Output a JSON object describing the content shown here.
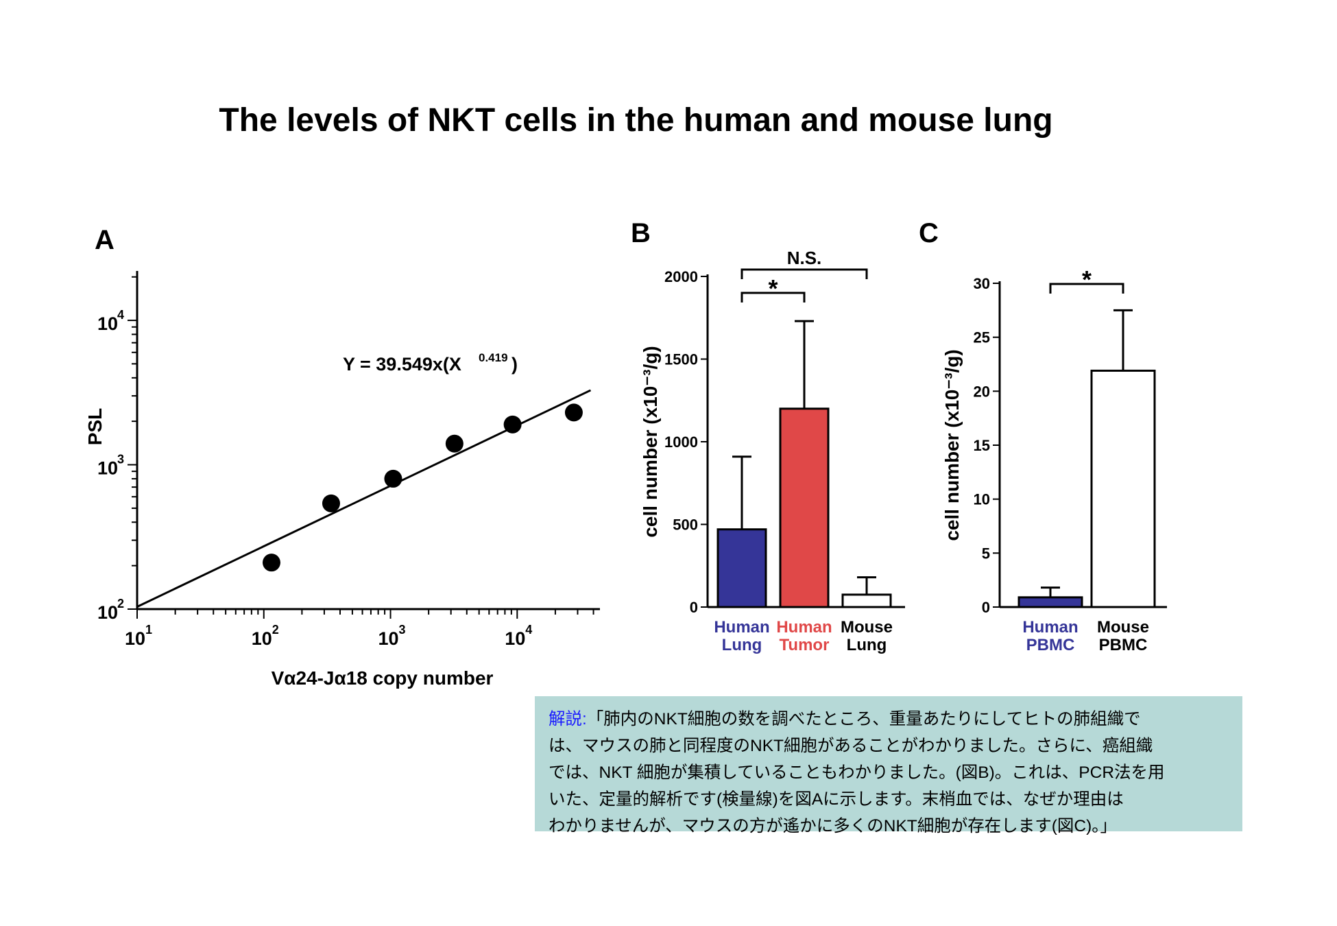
{
  "title": "The levels of NKT cells in the human and mouse lung",
  "panels": {
    "a": "A",
    "b": "B",
    "c": "C"
  },
  "colors": {
    "human": "#353598",
    "tumor": "#e04848",
    "mouse": "#ffffff",
    "box_bg": "#b6d9d7",
    "label_blue": "#1a1aff"
  },
  "chart_data": [
    {
      "id": "A",
      "type": "scatter",
      "xscale": "log",
      "yscale": "log",
      "xlabel": "Vα24-Jα18 copy number",
      "ylabel": "PSL",
      "xlim": [
        10,
        45000
      ],
      "ylim": [
        100,
        22000
      ],
      "x_ticks": [
        {
          "base": "10",
          "exp": "1",
          "value": 10
        },
        {
          "base": "10",
          "exp": "2",
          "value": 100
        },
        {
          "base": "10",
          "exp": "3",
          "value": 1000
        },
        {
          "base": "10",
          "exp": "4",
          "value": 10000
        }
      ],
      "y_ticks": [
        {
          "base": "10",
          "exp": "2",
          "value": 100
        },
        {
          "base": "10",
          "exp": "3",
          "value": 1000
        },
        {
          "base": "10",
          "exp": "4",
          "value": 10000
        }
      ],
      "points": [
        {
          "x": 115,
          "y": 210
        },
        {
          "x": 340,
          "y": 540
        },
        {
          "x": 1050,
          "y": 800
        },
        {
          "x": 3200,
          "y": 1400
        },
        {
          "x": 9200,
          "y": 1900
        },
        {
          "x": 28000,
          "y": 2300
        }
      ],
      "fit": {
        "x_from": 10,
        "x_to": 38000,
        "coef": 39.549,
        "exp": 0.419
      },
      "equation": {
        "main": "Y = 39.549x(X",
        "sup": "0.419",
        "close": ")"
      }
    },
    {
      "id": "B",
      "type": "bar",
      "ylabel": "cell number (x10⁻³/g)",
      "ylim": [
        0,
        2000
      ],
      "y_ticks": [
        "0",
        "500",
        "1000",
        "1500",
        "2000"
      ],
      "categories": [
        {
          "line1": "Human",
          "line2": "Lung",
          "color": "#353598",
          "text_color": "#353598"
        },
        {
          "line1": "Human",
          "line2": "Tumor",
          "color": "#e04848",
          "text_color": "#e04848"
        },
        {
          "line1": "Mouse",
          "line2": "Lung",
          "color": "#ffffff",
          "text_color": "#000000"
        }
      ],
      "values": [
        470,
        1200,
        75
      ],
      "errors": [
        440,
        530,
        105
      ],
      "comparisons": [
        {
          "from": 0,
          "to": 2,
          "label": "N.S."
        },
        {
          "from": 0,
          "to": 1,
          "label": "*"
        }
      ]
    },
    {
      "id": "C",
      "type": "bar",
      "ylabel": "cell number (x10⁻³/g)",
      "ylim": [
        0,
        30
      ],
      "y_ticks": [
        "0",
        "5",
        "10",
        "15",
        "20",
        "25",
        "30"
      ],
      "categories": [
        {
          "line1": "Human",
          "line2": "PBMC",
          "color": "#353598",
          "text_color": "#353598"
        },
        {
          "line1": "Mouse",
          "line2": "PBMC",
          "color": "#ffffff",
          "text_color": "#000000"
        }
      ],
      "values": [
        0.9,
        21.9
      ],
      "errors": [
        0.9,
        5.6
      ],
      "comparisons": [
        {
          "from": 0,
          "to": 1,
          "label": "*"
        }
      ]
    }
  ],
  "explanation": {
    "label": "解説:",
    "lines": [
      "「肺内のNKT細胞の数を調べたところ、重量あたりにしてヒトの肺組織で",
      "は、マウスの肺と同程度のNKT細胞があることがわかりました。さらに、癌組織",
      "では、NKT 細胞が集積していることもわかりました。(図B)。これは、PCR法を用",
      "いた、定量的解析です(検量線)を図Aに示します。末梢血では、なぜか理由は",
      "わかりませんが、マウスの方が遙かに多くのNKT細胞が存在します(図C)。」"
    ]
  }
}
